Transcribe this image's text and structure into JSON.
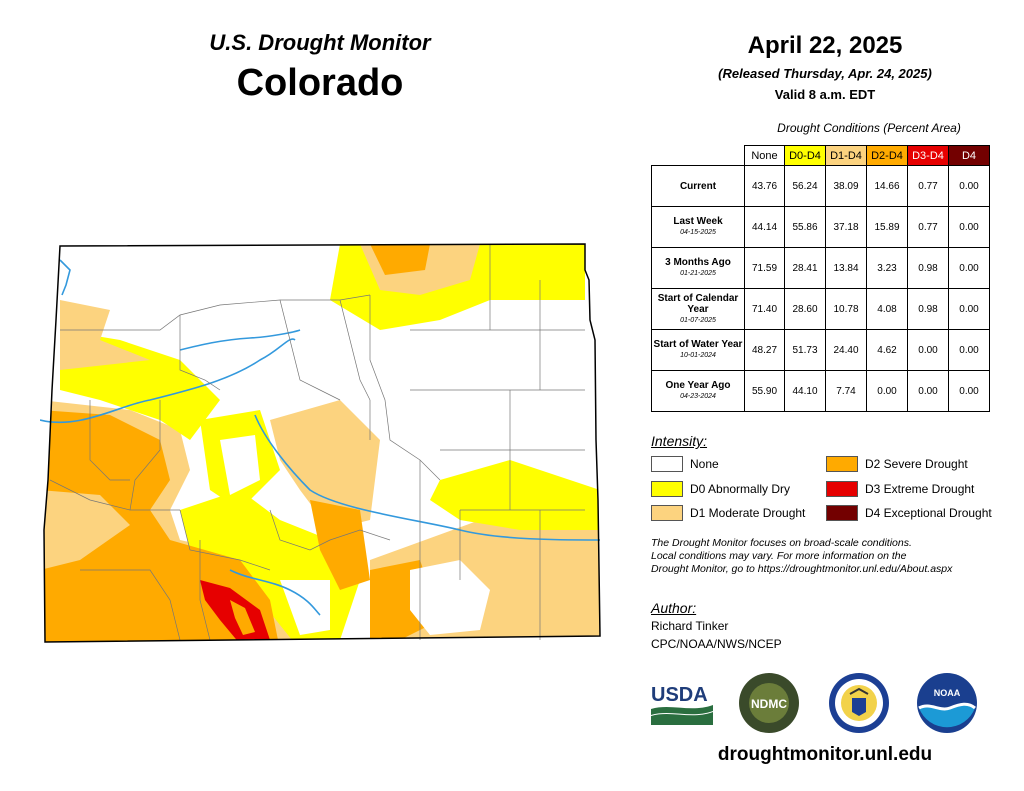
{
  "header": {
    "product": "U.S. Drought Monitor",
    "state": "Colorado",
    "date": "April 22, 2025",
    "released": "(Released Thursday, Apr. 24, 2025)",
    "valid": "Valid 8 a.m. EDT"
  },
  "table": {
    "caption": "Drought Conditions (Percent Area)",
    "columns": [
      "None",
      "D0-D4",
      "D1-D4",
      "D2-D4",
      "D3-D4",
      "D4"
    ],
    "rows": [
      {
        "label": "Current",
        "date": "",
        "values": [
          "43.76",
          "56.24",
          "38.09",
          "14.66",
          "0.77",
          "0.00"
        ]
      },
      {
        "label": "Last Week",
        "date": "04-15-2025",
        "values": [
          "44.14",
          "55.86",
          "37.18",
          "15.89",
          "0.77",
          "0.00"
        ]
      },
      {
        "label": "3 Months Ago",
        "date": "01-21-2025",
        "values": [
          "71.59",
          "28.41",
          "13.84",
          "3.23",
          "0.98",
          "0.00"
        ]
      },
      {
        "label": "Start of Calendar Year",
        "date": "01-07-2025",
        "values": [
          "71.40",
          "28.60",
          "10.78",
          "4.08",
          "0.98",
          "0.00"
        ]
      },
      {
        "label": "Start of Water Year",
        "date": "10-01-2024",
        "values": [
          "48.27",
          "51.73",
          "24.40",
          "4.62",
          "0.00",
          "0.00"
        ]
      },
      {
        "label": "One Year Ago",
        "date": "04-23-2024",
        "values": [
          "55.90",
          "44.10",
          "7.74",
          "0.00",
          "0.00",
          "0.00"
        ]
      }
    ]
  },
  "legend": {
    "title": "Intensity:",
    "items": [
      {
        "label": "None",
        "color": "#ffffff"
      },
      {
        "label": "D0 Abnormally Dry",
        "color": "#ffff00"
      },
      {
        "label": "D1 Moderate Drought",
        "color": "#fcd37f"
      },
      {
        "label": "D2 Severe Drought",
        "color": "#ffaa00"
      },
      {
        "label": "D3 Extreme Drought",
        "color": "#e60000"
      },
      {
        "label": "D4 Exceptional Drought",
        "color": "#730000"
      }
    ]
  },
  "note": {
    "line1": "The Drought Monitor focuses on broad-scale conditions.",
    "line2": "Local conditions may vary. For more information on the",
    "line3": "Drought Monitor, go to https://droughtmonitor.unl.edu/About.aspx"
  },
  "author": {
    "label": "Author:",
    "name": "Richard Tinker",
    "org": "CPC/NOAA/NWS/NCEP"
  },
  "logos": {
    "usda": "USDA",
    "ndmc": "NDMC",
    "noaa": "NOAA"
  },
  "website": "droughtmonitor.unl.edu",
  "colors": {
    "none": "#ffffff",
    "d0": "#ffff00",
    "d1": "#fcd37f",
    "d2": "#ffaa00",
    "d3": "#e60000",
    "d4": "#730000",
    "river": "#3399dd"
  }
}
